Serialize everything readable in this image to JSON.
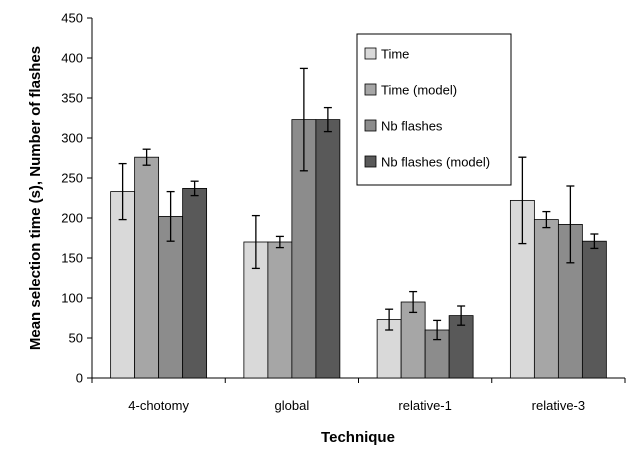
{
  "chart_data": {
    "type": "bar",
    "title": "",
    "xlabel": "Technique",
    "ylabel": "Mean selection time (s), Number of flashes",
    "ylim": [
      0,
      450
    ],
    "yticks": [
      0,
      50,
      100,
      150,
      200,
      250,
      300,
      350,
      400,
      450
    ],
    "grid": false,
    "legend_position": "top-right",
    "categories": [
      "4-chotomy",
      "global",
      "relative-1",
      "relative-3"
    ],
    "series": [
      {
        "name": "Time",
        "color": "#d9d9d9",
        "values": [
          233,
          170,
          73,
          222
        ],
        "errors": [
          35,
          33,
          13,
          54
        ]
      },
      {
        "name": "Time (model)",
        "color": "#a6a6a6",
        "values": [
          276,
          170,
          95,
          198
        ],
        "errors": [
          10,
          7,
          13,
          10
        ]
      },
      {
        "name": "Nb flashes",
        "color": "#8c8c8c",
        "values": [
          202,
          323,
          60,
          192
        ],
        "errors": [
          31,
          64,
          12,
          48
        ]
      },
      {
        "name": "Nb flashes (model)",
        "color": "#595959",
        "values": [
          237,
          323,
          78,
          171
        ],
        "errors": [
          9,
          15,
          12,
          9
        ]
      }
    ]
  }
}
